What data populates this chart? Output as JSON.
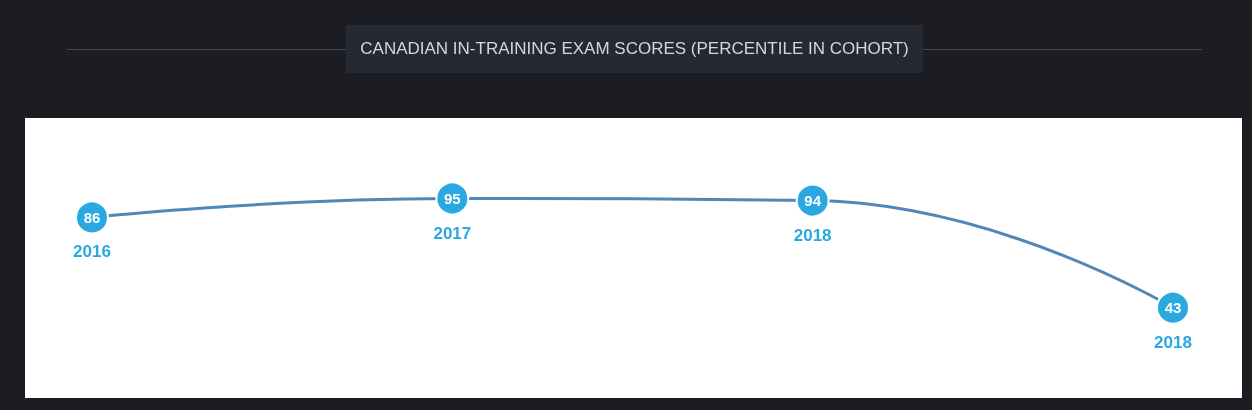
{
  "chart_data": {
    "type": "line",
    "title": "CANADIAN IN-TRAINING EXAM SCORES (PERCENTILE IN COHORT)",
    "categories": [
      "2016",
      "2017",
      "2018",
      "2018"
    ],
    "series": [
      {
        "color": "#4f87b8",
        "values": [
          86,
          95,
          94,
          43
        ]
      }
    ],
    "data_labels": true,
    "marker": "circle"
  }
}
